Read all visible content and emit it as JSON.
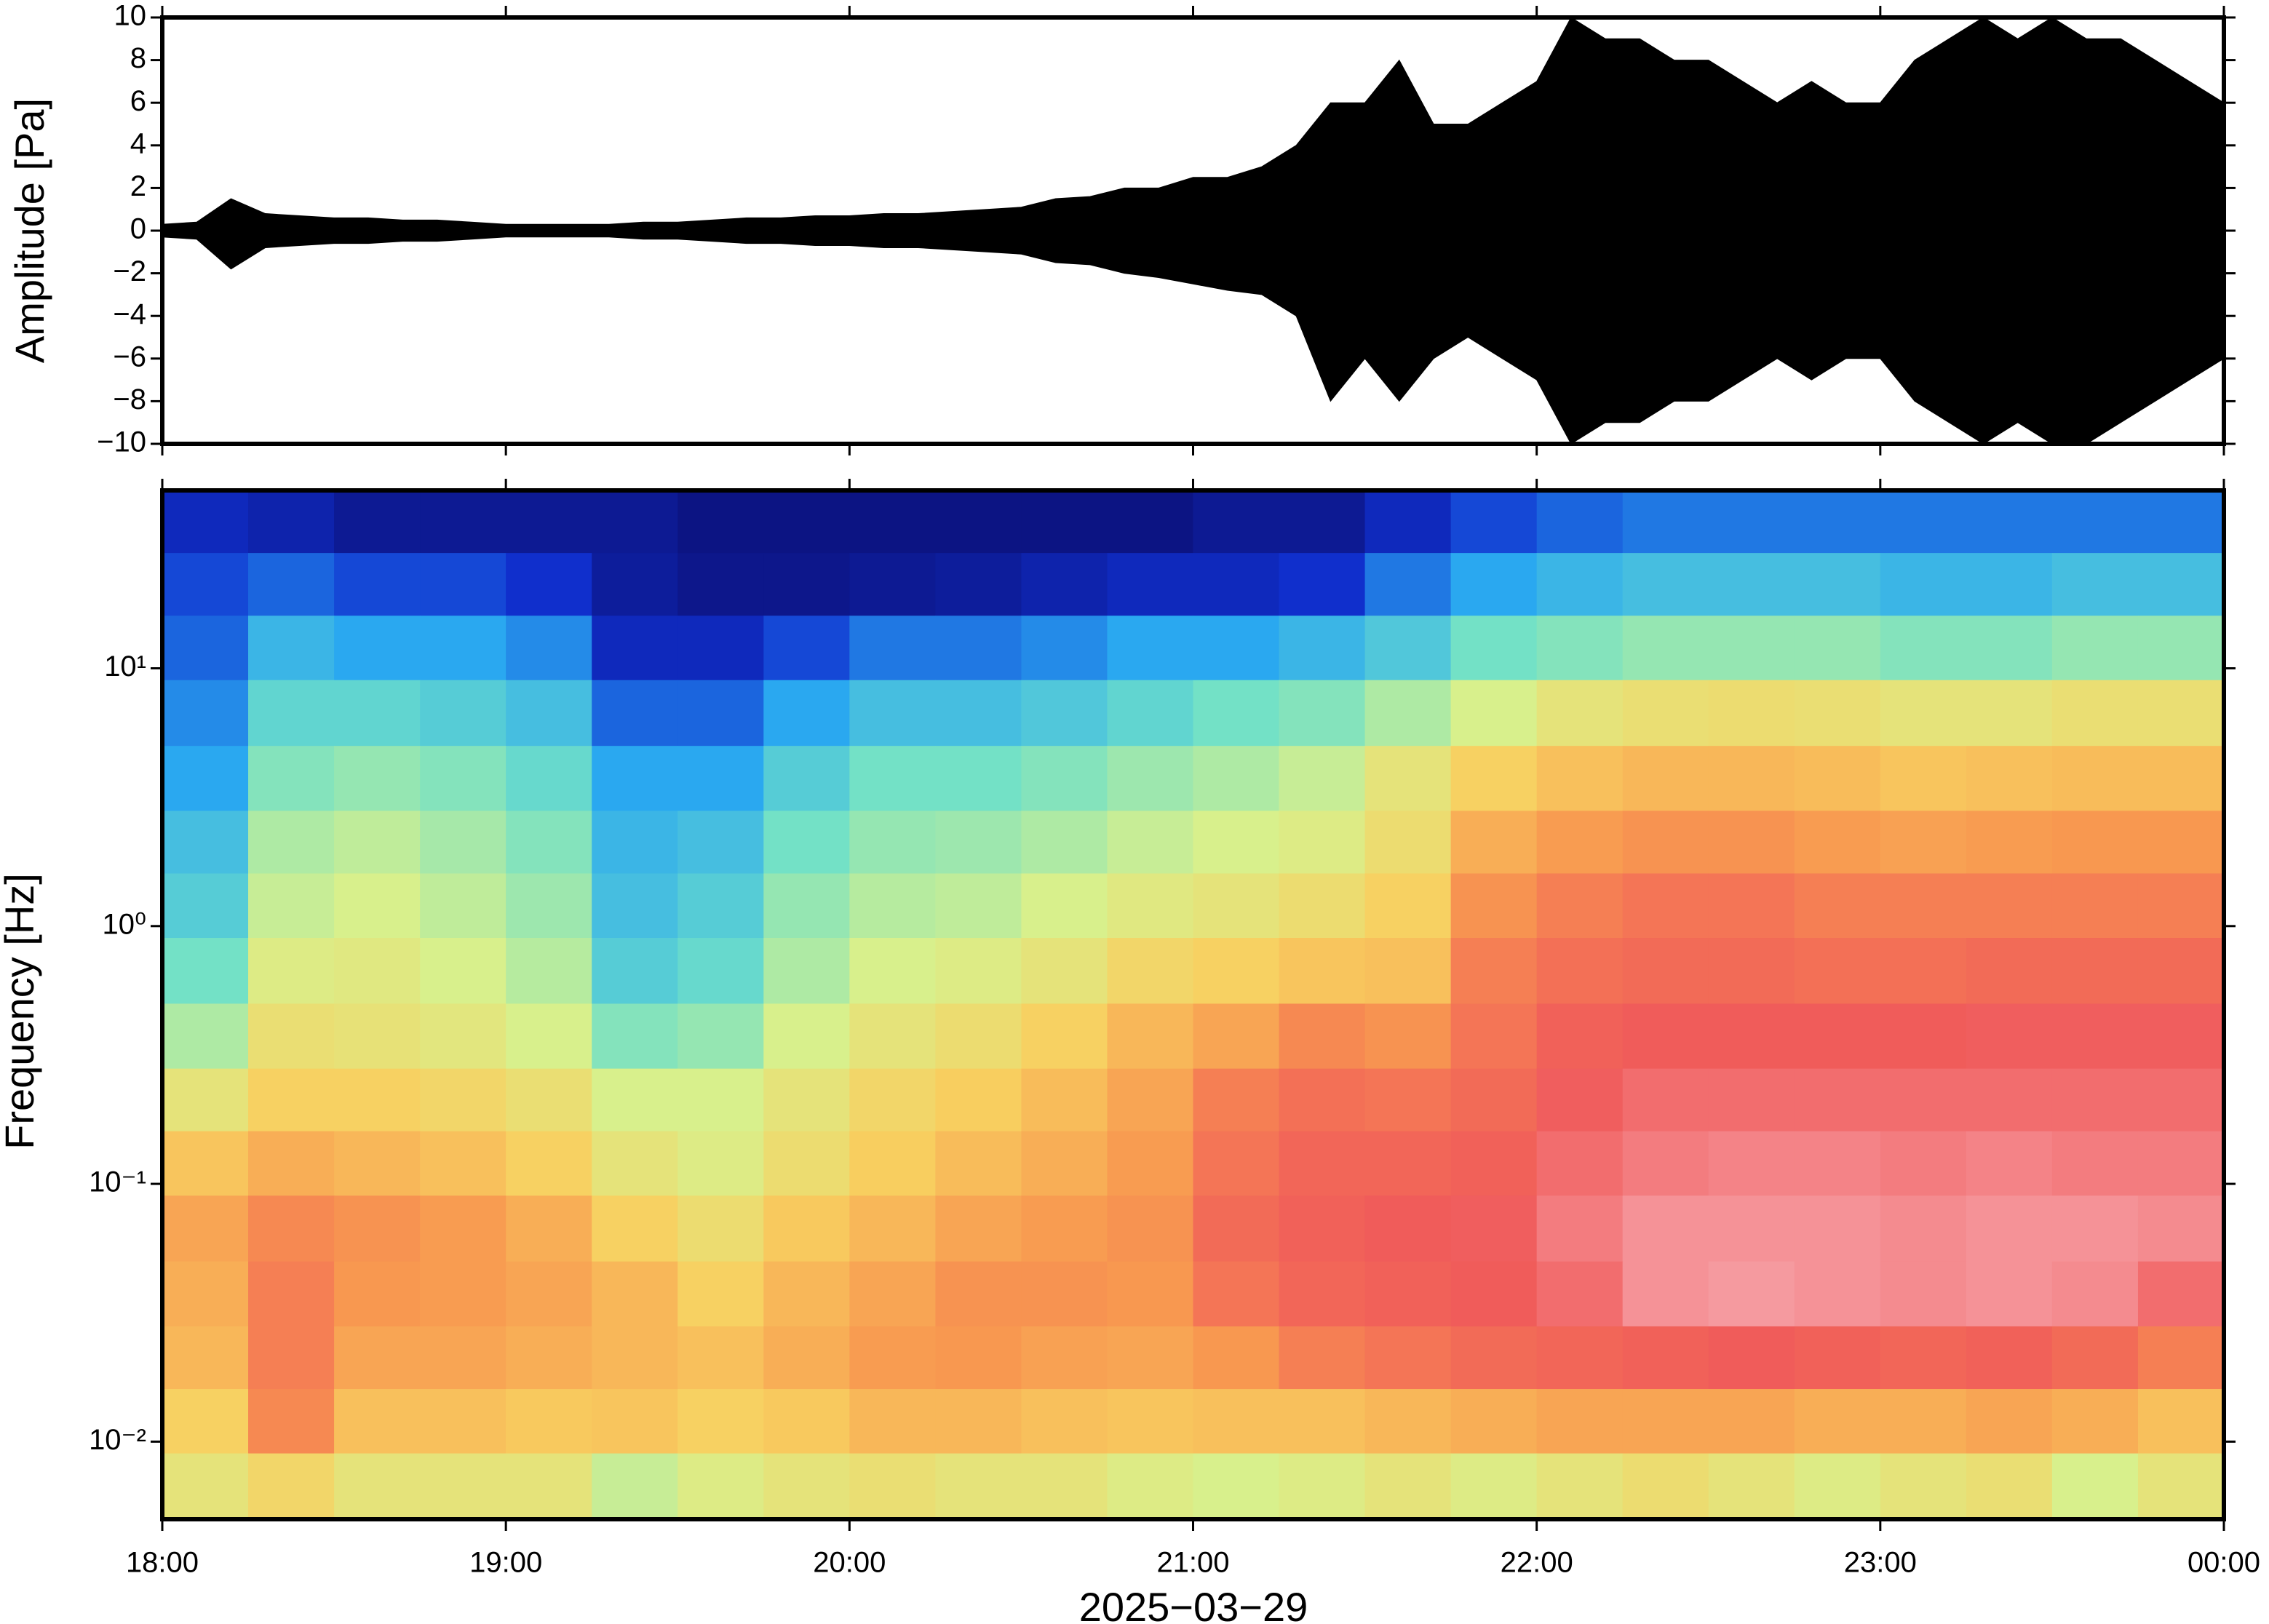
{
  "chart_data": [
    {
      "type": "area",
      "y_label": "Amplitude [Pa]",
      "x": [
        18.0,
        18.1,
        18.2,
        18.3,
        18.4,
        18.5,
        18.6,
        18.7,
        18.8,
        18.9,
        19.0,
        19.1,
        19.2,
        19.3,
        19.4,
        19.5,
        19.6,
        19.7,
        19.8,
        19.9,
        20.0,
        20.1,
        20.2,
        20.3,
        20.4,
        20.5,
        20.6,
        20.7,
        20.8,
        20.9,
        21.0,
        21.1,
        21.2,
        21.3,
        21.4,
        21.5,
        21.6,
        21.7,
        21.8,
        21.9,
        22.0,
        22.1,
        22.2,
        22.3,
        22.4,
        22.5,
        22.6,
        22.7,
        22.8,
        22.9,
        23.0,
        23.1,
        23.2,
        23.3,
        23.4,
        23.5,
        23.6,
        23.7,
        23.8,
        23.9,
        24.0
      ],
      "upper": [
        0.3,
        0.4,
        1.5,
        0.8,
        0.7,
        0.6,
        0.6,
        0.5,
        0.5,
        0.4,
        0.3,
        0.3,
        0.3,
        0.3,
        0.4,
        0.4,
        0.5,
        0.6,
        0.6,
        0.7,
        0.7,
        0.8,
        0.8,
        0.9,
        1.0,
        1.1,
        1.5,
        1.6,
        2.0,
        2.0,
        2.5,
        2.5,
        3.0,
        4.0,
        6.0,
        6.0,
        8.0,
        5.0,
        5.0,
        6.0,
        7.0,
        10.0,
        9.0,
        9.0,
        8.0,
        8.0,
        7.0,
        6.0,
        7.0,
        6.0,
        6.0,
        8.0,
        9.0,
        10.0,
        9.0,
        10.0,
        9.0,
        9.0,
        8.0,
        7.0,
        6.0
      ],
      "lower": [
        -0.3,
        -0.4,
        -1.8,
        -0.8,
        -0.7,
        -0.6,
        -0.6,
        -0.5,
        -0.5,
        -0.4,
        -0.3,
        -0.3,
        -0.3,
        -0.3,
        -0.4,
        -0.4,
        -0.5,
        -0.6,
        -0.6,
        -0.7,
        -0.7,
        -0.8,
        -0.8,
        -0.9,
        -1.0,
        -1.1,
        -1.5,
        -1.6,
        -2.0,
        -2.2,
        -2.5,
        -2.8,
        -3.0,
        -4.0,
        -8.0,
        -6.0,
        -8.0,
        -6.0,
        -5.0,
        -6.0,
        -7.0,
        -10.0,
        -9.0,
        -9.0,
        -8.0,
        -8.0,
        -7.0,
        -6.0,
        -7.0,
        -6.0,
        -6.0,
        -8.0,
        -9.0,
        -10.0,
        -9.0,
        -10.0,
        -10.0,
        -9.0,
        -8.0,
        -7.0,
        -6.0
      ],
      "color": "#000000",
      "xlim": [
        18,
        24
      ],
      "xticks": [
        18,
        19,
        20,
        21,
        22,
        23,
        24
      ],
      "ylim": [
        -10,
        10
      ],
      "yticks": [
        {
          "value": -10,
          "label": "−10"
        },
        {
          "value": -8,
          "label": "−8"
        },
        {
          "value": -6,
          "label": "−6"
        },
        {
          "value": -4,
          "label": "−4"
        },
        {
          "value": -2,
          "label": "−2"
        },
        0,
        2,
        4,
        6,
        8,
        10
      ]
    },
    {
      "type": "heatmap",
      "y_label": "Frequency [Hz]",
      "x_label": "2025−03−29",
      "log_y": true,
      "x_edges": [
        18,
        18.25,
        18.5,
        18.75,
        19,
        19.25,
        19.5,
        19.75,
        20,
        20.25,
        20.5,
        20.75,
        21,
        21.25,
        21.5,
        21.75,
        22,
        22.25,
        22.5,
        22.75,
        23,
        23.25,
        23.5,
        23.75,
        24
      ],
      "y_edges": [
        49,
        28,
        16,
        9,
        5,
        2.8,
        1.6,
        0.9,
        0.5,
        0.28,
        0.16,
        0.09,
        0.05,
        0.028,
        0.016,
        0.009,
        0.005
      ],
      "z": [
        [
          0.1,
          0.08,
          0.05,
          0.05,
          0.05,
          0.05,
          0.03,
          0.03,
          0.03,
          0.03,
          0.03,
          0.03,
          0.05,
          0.05,
          0.1,
          0.15,
          0.18,
          0.2,
          0.2,
          0.2,
          0.2,
          0.2,
          0.2,
          0.2
        ],
        [
          0.15,
          0.18,
          0.15,
          0.15,
          0.12,
          0.06,
          0.04,
          0.04,
          0.05,
          0.06,
          0.08,
          0.1,
          0.1,
          0.12,
          0.2,
          0.25,
          0.28,
          0.3,
          0.3,
          0.3,
          0.28,
          0.28,
          0.3,
          0.3
        ],
        [
          0.18,
          0.28,
          0.25,
          0.25,
          0.22,
          0.1,
          0.1,
          0.15,
          0.2,
          0.2,
          0.22,
          0.25,
          0.25,
          0.28,
          0.32,
          0.38,
          0.4,
          0.42,
          0.42,
          0.42,
          0.4,
          0.4,
          0.42,
          0.42
        ],
        [
          0.22,
          0.35,
          0.35,
          0.33,
          0.3,
          0.18,
          0.18,
          0.25,
          0.3,
          0.3,
          0.32,
          0.35,
          0.38,
          0.4,
          0.45,
          0.5,
          0.55,
          0.57,
          0.58,
          0.57,
          0.55,
          0.55,
          0.57,
          0.57
        ],
        [
          0.25,
          0.4,
          0.42,
          0.4,
          0.36,
          0.25,
          0.25,
          0.33,
          0.38,
          0.38,
          0.4,
          0.43,
          0.45,
          0.48,
          0.55,
          0.62,
          0.66,
          0.68,
          0.68,
          0.67,
          0.65,
          0.66,
          0.67,
          0.67
        ],
        [
          0.3,
          0.45,
          0.47,
          0.44,
          0.4,
          0.28,
          0.3,
          0.38,
          0.42,
          0.43,
          0.45,
          0.48,
          0.5,
          0.52,
          0.58,
          0.7,
          0.74,
          0.76,
          0.76,
          0.74,
          0.73,
          0.74,
          0.75,
          0.75
        ],
        [
          0.33,
          0.48,
          0.5,
          0.47,
          0.43,
          0.3,
          0.33,
          0.42,
          0.46,
          0.47,
          0.5,
          0.53,
          0.55,
          0.58,
          0.62,
          0.76,
          0.8,
          0.82,
          0.82,
          0.8,
          0.8,
          0.8,
          0.8,
          0.8
        ],
        [
          0.38,
          0.52,
          0.53,
          0.5,
          0.46,
          0.33,
          0.36,
          0.45,
          0.5,
          0.52,
          0.55,
          0.6,
          0.62,
          0.65,
          0.66,
          0.8,
          0.83,
          0.84,
          0.84,
          0.83,
          0.83,
          0.84,
          0.84,
          0.84
        ],
        [
          0.45,
          0.57,
          0.56,
          0.54,
          0.5,
          0.4,
          0.42,
          0.5,
          0.55,
          0.58,
          0.62,
          0.68,
          0.72,
          0.78,
          0.76,
          0.82,
          0.86,
          0.87,
          0.87,
          0.87,
          0.87,
          0.88,
          0.88,
          0.88
        ],
        [
          0.55,
          0.62,
          0.62,
          0.6,
          0.57,
          0.5,
          0.5,
          0.55,
          0.6,
          0.63,
          0.67,
          0.72,
          0.8,
          0.83,
          0.82,
          0.84,
          0.88,
          0.9,
          0.9,
          0.9,
          0.9,
          0.9,
          0.9,
          0.9
        ],
        [
          0.65,
          0.7,
          0.68,
          0.66,
          0.62,
          0.55,
          0.52,
          0.58,
          0.63,
          0.67,
          0.7,
          0.74,
          0.82,
          0.85,
          0.85,
          0.86,
          0.9,
          0.92,
          0.93,
          0.93,
          0.92,
          0.93,
          0.92,
          0.92
        ],
        [
          0.72,
          0.78,
          0.76,
          0.74,
          0.7,
          0.62,
          0.58,
          0.64,
          0.68,
          0.72,
          0.74,
          0.76,
          0.84,
          0.86,
          0.87,
          0.88,
          0.92,
          0.95,
          0.95,
          0.95,
          0.94,
          0.95,
          0.95,
          0.94
        ],
        [
          0.7,
          0.8,
          0.75,
          0.74,
          0.72,
          0.68,
          0.62,
          0.68,
          0.72,
          0.76,
          0.76,
          0.75,
          0.82,
          0.85,
          0.86,
          0.87,
          0.9,
          0.95,
          0.96,
          0.95,
          0.94,
          0.95,
          0.94,
          0.9
        ],
        [
          0.68,
          0.8,
          0.72,
          0.72,
          0.7,
          0.68,
          0.66,
          0.7,
          0.74,
          0.75,
          0.73,
          0.72,
          0.75,
          0.8,
          0.82,
          0.84,
          0.85,
          0.86,
          0.87,
          0.86,
          0.85,
          0.86,
          0.84,
          0.8
        ],
        [
          0.62,
          0.78,
          0.66,
          0.66,
          0.64,
          0.65,
          0.62,
          0.64,
          0.68,
          0.68,
          0.66,
          0.65,
          0.66,
          0.66,
          0.68,
          0.7,
          0.72,
          0.72,
          0.72,
          0.7,
          0.7,
          0.72,
          0.7,
          0.66
        ],
        [
          0.55,
          0.6,
          0.55,
          0.55,
          0.55,
          0.48,
          0.52,
          0.55,
          0.57,
          0.55,
          0.55,
          0.52,
          0.5,
          0.52,
          0.55,
          0.52,
          0.55,
          0.58,
          0.55,
          0.52,
          0.55,
          0.57,
          0.5,
          0.55
        ]
      ],
      "zlim": [
        0,
        1
      ],
      "colormap": [
        "#0b0b6b",
        "#1030d0",
        "#2aa8f0",
        "#6fe0c8",
        "#d8f08c",
        "#f8d060",
        "#f89850",
        "#f05a5a",
        "#f8b8c0"
      ],
      "xlim": [
        18,
        24
      ],
      "xticks": [
        {
          "value": 18,
          "label": "18:00"
        },
        {
          "value": 19,
          "label": "19:00"
        },
        {
          "value": 20,
          "label": "20:00"
        },
        {
          "value": 21,
          "label": "21:00"
        },
        {
          "value": 22,
          "label": "22:00"
        },
        {
          "value": 23,
          "label": "23:00"
        },
        {
          "value": 24,
          "label": "00:00"
        }
      ],
      "ylim": [
        0.005,
        49
      ],
      "yticks": [
        {
          "value": 0.01,
          "label": "10⁻²"
        },
        {
          "value": 0.1,
          "label": "10⁻¹"
        },
        {
          "value": 1,
          "label": "10⁰"
        },
        {
          "value": 10,
          "label": "10¹"
        }
      ]
    }
  ]
}
